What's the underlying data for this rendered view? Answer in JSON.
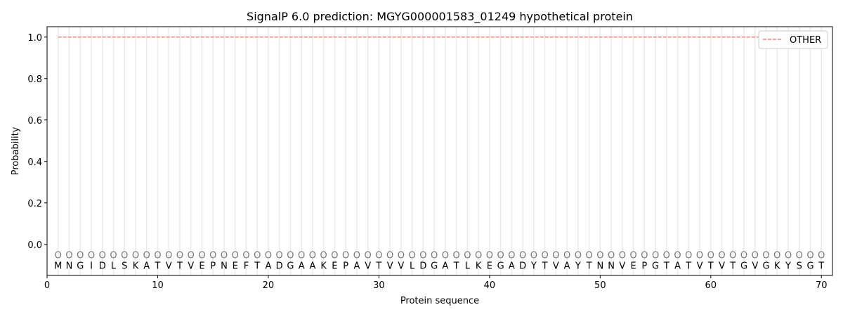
{
  "chart_data": {
    "type": "line",
    "title": "SignalP 6.0 prediction: MGYG000001583_01249 hypothetical protein",
    "xlabel": "Protein sequence",
    "ylabel": "Probability",
    "xlim": [
      0,
      71
    ],
    "ylim": [
      -0.15,
      1.05
    ],
    "xticks": [
      0,
      10,
      20,
      30,
      40,
      50,
      60,
      70
    ],
    "yticks": [
      0.0,
      0.2,
      0.4,
      0.6,
      0.8,
      1.0
    ],
    "sequence": "MNGIDLSKATVTVEPNEFTADGAAKEPAVTVVLDGATLKEGADYTVAYTNNVEPGTATVTVTGVGKYSGT",
    "region_label": "O",
    "series": [
      {
        "name": "OTHER",
        "color": "#f08080",
        "style": "dashed",
        "value": 1.0,
        "x_range": [
          1,
          70
        ]
      }
    ],
    "legend": "top-right",
    "grid": "vertical lines per residue"
  }
}
